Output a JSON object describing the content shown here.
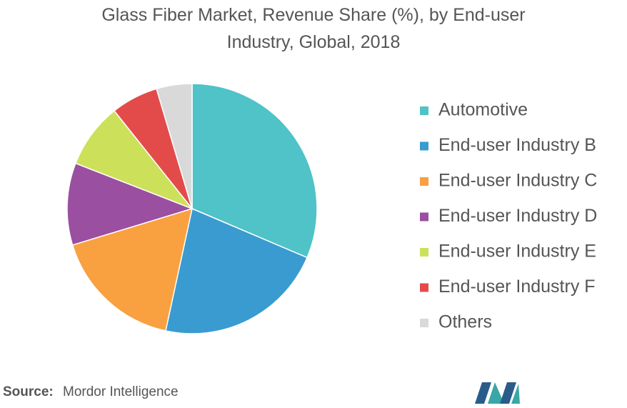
{
  "chart_data": {
    "type": "pie",
    "title": "Glass Fiber Market, Revenue Share (%), by End-user Industry, Global, 2018",
    "categories": [
      "Automotive",
      "End-user Industry B",
      "End-user Industry C",
      "End-user Industry D",
      "End-user Industry E",
      "End-user Industry F",
      "Others"
    ],
    "values": [
      31.4,
      22,
      16.9,
      10.6,
      8.4,
      6.1,
      4.6
    ],
    "colors": [
      "#4fc3c7",
      "#3a9bd1",
      "#f9a040",
      "#9b4fa0",
      "#cde05a",
      "#e34b4b",
      "#d9d9d9"
    ],
    "legend": "right"
  },
  "footer": {
    "source_label": "Source:",
    "source": "Mordor Intelligence"
  }
}
